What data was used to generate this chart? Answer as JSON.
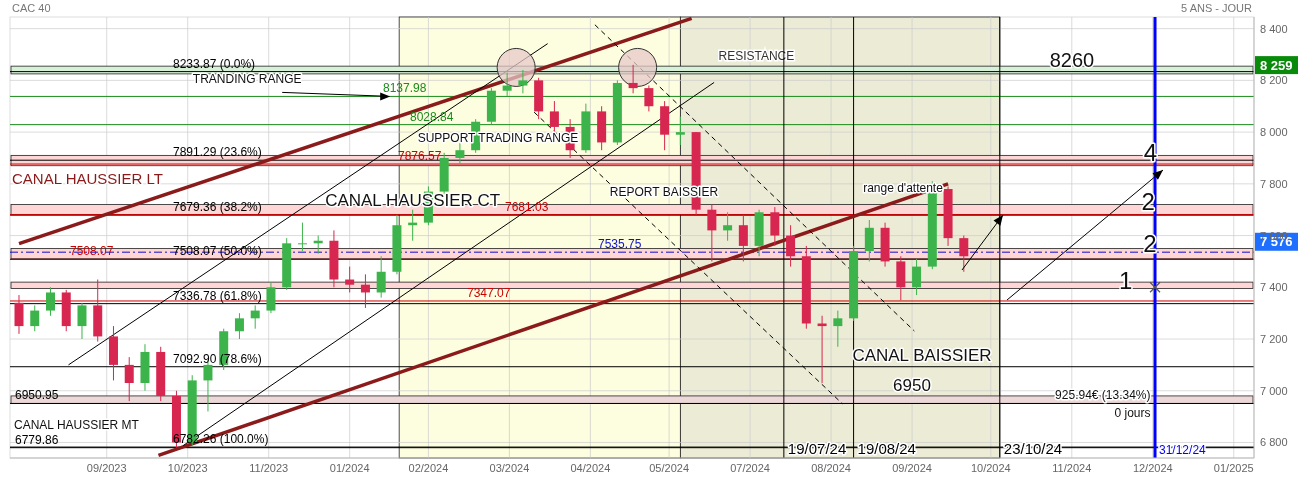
{
  "chart_data": {
    "type": "candlestick",
    "title": "CAC 40",
    "subtitle": "5 ANS - JOUR",
    "x": [
      "2023-08-14",
      "2023-08-21",
      "2023-08-28",
      "2023-09-04",
      "2023-09-11",
      "2023-09-18",
      "2023-09-25",
      "2023-10-02",
      "2023-10-09",
      "2023-10-16",
      "2023-10-23",
      "2023-10-30",
      "2023-11-06",
      "2023-11-13",
      "2023-11-20",
      "2023-11-27",
      "2023-12-04",
      "2023-12-11",
      "2023-12-18",
      "2023-12-25",
      "2024-01-01",
      "2024-01-08",
      "2024-01-15",
      "2024-01-22",
      "2024-01-29",
      "2024-02-05",
      "2024-02-12",
      "2024-02-19",
      "2024-02-26",
      "2024-03-04",
      "2024-03-11",
      "2024-03-18",
      "2024-03-25",
      "2024-04-01",
      "2024-04-08",
      "2024-04-15",
      "2024-04-22",
      "2024-04-29",
      "2024-05-06",
      "2024-05-13",
      "2024-05-20",
      "2024-05-27",
      "2024-06-03",
      "2024-06-10",
      "2024-06-17",
      "2024-06-24",
      "2024-07-01",
      "2024-07-08",
      "2024-07-15",
      "2024-07-22",
      "2024-07-29",
      "2024-08-05",
      "2024-08-12",
      "2024-08-19",
      "2024-08-26",
      "2024-09-02",
      "2024-09-09",
      "2024-09-16",
      "2024-09-23",
      "2024-09-30",
      "2024-10-07"
    ],
    "ohlc": [
      [
        7340,
        7370,
        7220,
        7250
      ],
      [
        7250,
        7330,
        7230,
        7310
      ],
      [
        7310,
        7400,
        7290,
        7380
      ],
      [
        7380,
        7390,
        7230,
        7250
      ],
      [
        7250,
        7340,
        7200,
        7330
      ],
      [
        7330,
        7430,
        7190,
        7210
      ],
      [
        7210,
        7250,
        7040,
        7100
      ],
      [
        7100,
        7130,
        6960,
        7030
      ],
      [
        7030,
        7180,
        7000,
        7150
      ],
      [
        7150,
        7170,
        6960,
        6980
      ],
      [
        6980,
        7000,
        6780,
        6800
      ],
      [
        6800,
        7060,
        6790,
        7040
      ],
      [
        7040,
        7120,
        6920,
        7100
      ],
      [
        7100,
        7240,
        7080,
        7230
      ],
      [
        7230,
        7300,
        7200,
        7280
      ],
      [
        7280,
        7330,
        7240,
        7310
      ],
      [
        7310,
        7420,
        7300,
        7400
      ],
      [
        7400,
        7590,
        7390,
        7570
      ],
      [
        7570,
        7650,
        7540,
        7570
      ],
      [
        7570,
        7600,
        7530,
        7580
      ],
      [
        7580,
        7620,
        7400,
        7430
      ],
      [
        7430,
        7480,
        7380,
        7410
      ],
      [
        7410,
        7450,
        7320,
        7380
      ],
      [
        7380,
        7520,
        7360,
        7460
      ],
      [
        7460,
        7680,
        7450,
        7640
      ],
      [
        7640,
        7700,
        7580,
        7650
      ],
      [
        7650,
        7790,
        7640,
        7770
      ],
      [
        7770,
        7920,
        7760,
        7900
      ],
      [
        7900,
        7960,
        7880,
        7930
      ],
      [
        7930,
        8050,
        7920,
        8040
      ],
      [
        8040,
        8170,
        8030,
        8160
      ],
      [
        8160,
        8230,
        8140,
        8180
      ],
      [
        8180,
        8240,
        8150,
        8200
      ],
      [
        8200,
        8210,
        8050,
        8080
      ],
      [
        8080,
        8120,
        8000,
        8020
      ],
      [
        8020,
        8050,
        7900,
        7930
      ],
      [
        7930,
        8110,
        7920,
        8080
      ],
      [
        8080,
        8100,
        7930,
        7960
      ],
      [
        7960,
        8200,
        7950,
        8190
      ],
      [
        8190,
        8260,
        8150,
        8170
      ],
      [
        8170,
        8180,
        8080,
        8100
      ],
      [
        8100,
        8120,
        7930,
        7990
      ],
      [
        7990,
        8060,
        7950,
        8000
      ],
      [
        8000,
        8000,
        7680,
        7700
      ],
      [
        7700,
        7720,
        7500,
        7620
      ],
      [
        7620,
        7690,
        7580,
        7640
      ],
      [
        7640,
        7680,
        7500,
        7560
      ],
      [
        7560,
        7700,
        7520,
        7690
      ],
      [
        7690,
        7710,
        7560,
        7600
      ],
      [
        7600,
        7640,
        7480,
        7520
      ],
      [
        7520,
        7560,
        7240,
        7260
      ],
      [
        7260,
        7290,
        7030,
        7250
      ],
      [
        7250,
        7310,
        7170,
        7280
      ],
      [
        7280,
        7560,
        7270,
        7540
      ],
      [
        7540,
        7660,
        7500,
        7630
      ],
      [
        7630,
        7650,
        7480,
        7500
      ],
      [
        7500,
        7520,
        7350,
        7400
      ],
      [
        7400,
        7510,
        7370,
        7480
      ],
      [
        7480,
        7810,
        7470,
        7780
      ],
      [
        7780,
        7790,
        7560,
        7590
      ],
      [
        7590,
        7600,
        7460,
        7520
      ]
    ],
    "xlim": [
      "2023-08-10",
      "2025-02-13"
    ],
    "xticks": [
      {
        "value": "2023-09-22",
        "label": "09/2023"
      },
      {
        "value": "2023-10-28",
        "label": "10/2023"
      },
      {
        "value": "2023-12-03",
        "label": "11/2023"
      },
      {
        "value": "2024-01-08",
        "label": "01/2024"
      },
      {
        "value": "2024-02-12",
        "label": "02/2024"
      },
      {
        "value": "2024-03-19",
        "label": "03/2024"
      },
      {
        "value": "2024-04-24",
        "label": "04/2024"
      },
      {
        "value": "2024-05-29",
        "label": "05/2024"
      },
      {
        "value": "2024-07-04",
        "label": "07/2024"
      },
      {
        "value": "2024-08-09",
        "label": "08/2024"
      },
      {
        "value": "2024-09-14",
        "label": "09/2024"
      },
      {
        "value": "2024-10-19",
        "label": "10/2024"
      },
      {
        "value": "2024-11-24",
        "label": "11/2024"
      },
      {
        "value": "2024-12-30",
        "label": "12/2024"
      },
      {
        "value": "2025-02-04",
        "label": "01/2025"
      }
    ],
    "ylim": [
      6740,
      8445
    ],
    "yticks": [
      {
        "value": 6800,
        "label": "6 800"
      },
      {
        "value": 7000,
        "label": "7 000"
      },
      {
        "value": 7200,
        "label": "7 200"
      },
      {
        "value": 7400,
        "label": "7 400"
      },
      {
        "value": 7600,
        "label": "7 600"
      },
      {
        "value": 7800,
        "label": "7 800"
      },
      {
        "value": 8000,
        "label": "8 000"
      },
      {
        "value": 8200,
        "label": "8 200"
      },
      {
        "value": 8400,
        "label": "8 400"
      }
    ],
    "grid": true,
    "series": [
      {
        "type": "line",
        "x": [
          "2023-08-14",
          "2024-06-08"
        ],
        "values": [
          7569,
          8440
        ],
        "color": "#8b1a1a"
      },
      {
        "type": "line",
        "x": [
          "2023-10-15",
          "2024-09-30"
        ],
        "values": [
          6750,
          7800
        ],
        "color": "#8b1a1a"
      },
      {
        "type": "line",
        "x": [
          "2023-09-05",
          "2024-04-05"
        ],
        "values": [
          7100,
          8342
        ],
        "color": "#000000"
      },
      {
        "type": "line",
        "x": [
          "2023-10-26",
          "2024-06-18"
        ],
        "values": [
          6788,
          8192
        ],
        "color": "#000000"
      },
      {
        "type": "line",
        "x": [
          "2024-04-26",
          "2024-09-15"
        ],
        "values": [
          8415,
          7231
        ],
        "color": "#000000",
        "line_style": "dashed"
      },
      {
        "type": "line",
        "x": [
          "2024-03-30",
          "2024-08-14"
        ],
        "values": [
          8077,
          6950
        ],
        "color": "#000000",
        "line_style": "dashed"
      },
      {
        "type": "scatter",
        "x": [
          "2024-03-22",
          "2024-05-15"
        ],
        "values": [
          8250,
          8250
        ],
        "color": "#e6c8c8",
        "marker": "circle"
      },
      {
        "type": "scatter",
        "x": [
          "2024-12-31"
        ],
        "values": [
          7400
        ],
        "color": "#555555",
        "marker": "cross"
      }
    ],
    "ref_lines": [
      {
        "axis": "y",
        "value": 8233.87,
        "label": "8233.87  (0.0%)",
        "color": "#000000"
      },
      {
        "axis": "y",
        "value": 7891.29,
        "label": "7891.29  (23.6%)",
        "color": "#000000"
      },
      {
        "axis": "y",
        "value": 7679.36,
        "label": "7679.36  (38.2%)",
        "color": "#000000"
      },
      {
        "axis": "y",
        "value": 7508.07,
        "label": "7508.07  (50.0%)",
        "color": "#000000"
      },
      {
        "axis": "y",
        "value": 7336.78,
        "label": "7336.78  (61.8%)",
        "color": "#000000"
      },
      {
        "axis": "y",
        "value": 7092.9,
        "label": "7092.90  (78.6%)",
        "color": "#000000"
      },
      {
        "axis": "y",
        "value": 6782.26,
        "label": "6782.26  (100.0%)",
        "color": "#000000"
      },
      {
        "axis": "y",
        "value": 8137.98,
        "label": "8137.98",
        "color": "#1a8a1a"
      },
      {
        "axis": "y",
        "value": 8028.84,
        "label": "8028.84",
        "color": "#1a8a1a"
      },
      {
        "axis": "y",
        "value": 7876.57,
        "label": "7876.57",
        "color": "#cc0000"
      },
      {
        "axis": "y",
        "value": 7681.03,
        "label": "7681.03",
        "color": "#cc0000"
      },
      {
        "axis": "y",
        "value": 7508.07,
        "label": "7508.07",
        "color": "#cc0000"
      },
      {
        "axis": "y",
        "value": 7347.07,
        "label": "7347.07",
        "color": "#cc0000"
      },
      {
        "axis": "y",
        "value": 7535.75,
        "label": "7535.75",
        "color": "#1010cc",
        "line_style": "dashed"
      },
      {
        "axis": "y",
        "value": 6950.95,
        "label": "6950.95",
        "color": "#000000"
      },
      {
        "axis": "y",
        "value": 6779.86,
        "label": "6779.86",
        "color": "#000000"
      },
      {
        "axis": "x",
        "value": "2024-07-19",
        "label": "19/07/24",
        "color": "#000000"
      },
      {
        "axis": "x",
        "value": "2024-08-19",
        "label": "19/08/24",
        "color": "#000000"
      },
      {
        "axis": "x",
        "value": "2024-10-23",
        "label": "23/10/24",
        "color": "#000000"
      },
      {
        "axis": "x",
        "value": "2024-12-31",
        "label": "31/12/24",
        "color": "#0000ff"
      }
    ],
    "bands": [
      {
        "axis": "x",
        "from": "2024-01-30",
        "to": "2024-06-03",
        "color": "#fdfde0"
      },
      {
        "axis": "x",
        "from": "2024-06-03",
        "to": "2024-10-23",
        "color": "#ecebd6"
      },
      {
        "axis": "y",
        "from": 8225,
        "to": 8255,
        "color": "#d8f0d8",
        "label": "RESISTANCE"
      },
      {
        "axis": "y",
        "from": 6950.95,
        "to": 6980,
        "color": "#ecd8d8"
      },
      {
        "axis": "y",
        "from": 7870,
        "to": 7910,
        "color": "#ffd6d6"
      },
      {
        "axis": "y",
        "from": 7680,
        "to": 7720,
        "color": "#ffd6d6"
      },
      {
        "axis": "y",
        "from": 7510,
        "to": 7550,
        "color": "#ffd6d6"
      },
      {
        "axis": "y",
        "from": 7395,
        "to": 7420,
        "color": "#ffd6d6"
      }
    ],
    "annotations": [
      {
        "text": "TRANDING RANGE",
        "x": "2024-01-26",
        "y": 8138
      },
      "SUPPORT TRADING RANGE",
      {
        "text": "CANAL HAUSSIER CT",
        "x": "2024-02-05",
        "y": 7735
      },
      "CANAL HAUSSIER LT",
      "CANAL HAUSSIER MT",
      "REPORT BAISSIER",
      "range d'attente",
      "CANAL BAISSIER",
      "6950",
      "8260",
      {
        "text": "1",
        "x": "2024-12-18",
        "y": 7427
      },
      "2",
      {
        "text": "2",
        "x": "2024-12-28",
        "y": 7731
      },
      {
        "text": "4",
        "x": "2024-12-29",
        "y": 7923
      },
      {
        "text": "925.94€ (13.34%)",
        "x": "2024-12-29",
        "y": 6985
      },
      {
        "text": "0 jours",
        "x": "2024-12-29",
        "y": 6915
      },
      {
        "text": "8 259",
        "y": 8259
      },
      {
        "text": "7 576",
        "y": 7576
      }
    ]
  }
}
